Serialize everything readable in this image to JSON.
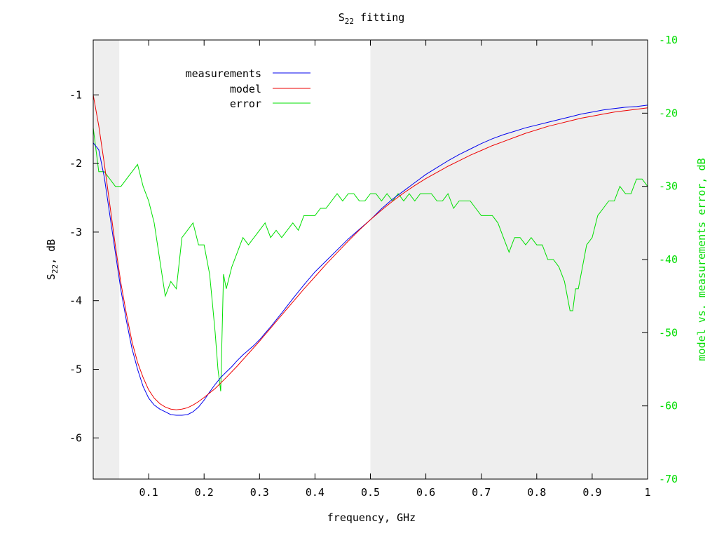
{
  "chart_data": {
    "type": "line",
    "title": {
      "base": "S",
      "sub": "22",
      "rest": " fitting"
    },
    "xlabel": "frequency, GHz",
    "ylabel": {
      "base": "S",
      "sub": "22",
      "rest": ", dB"
    },
    "y2label": "model vs. measurements error, dB",
    "xlim": [
      0.0,
      1.0
    ],
    "ylim": [
      -6.6,
      -0.2
    ],
    "y2lim": [
      -70,
      -10
    ],
    "x_ticks": [
      "0.1",
      "0.2",
      "0.3",
      "0.4",
      "0.5",
      "0.6",
      "0.7",
      "0.8",
      "0.9",
      "1"
    ],
    "y_ticks": [
      "-6",
      "-5",
      "-4",
      "-3",
      "-2",
      "-1"
    ],
    "y2_ticks": [
      "-70",
      "-60",
      "-50",
      "-40",
      "-30",
      "-20",
      "-10"
    ],
    "shaded_regions": [
      [
        0.0,
        0.047
      ],
      [
        0.5,
        1.0
      ]
    ],
    "grid": false,
    "legend_position": "top-left",
    "colors": {
      "measurements": "#0000ee",
      "model": "#ee0000",
      "error": "#00e000",
      "shade": "#eeeeee",
      "right_axis": "#00dd00"
    },
    "series": [
      {
        "name": "measurements",
        "axis": "left",
        "x": [
          0.0,
          0.01,
          0.02,
          0.03,
          0.04,
          0.05,
          0.06,
          0.07,
          0.08,
          0.09,
          0.1,
          0.11,
          0.12,
          0.13,
          0.14,
          0.15,
          0.16,
          0.17,
          0.18,
          0.19,
          0.2,
          0.21,
          0.22,
          0.23,
          0.24,
          0.25,
          0.26,
          0.27,
          0.28,
          0.29,
          0.3,
          0.32,
          0.34,
          0.36,
          0.38,
          0.4,
          0.42,
          0.44,
          0.46,
          0.48,
          0.5,
          0.52,
          0.54,
          0.56,
          0.58,
          0.6,
          0.62,
          0.64,
          0.66,
          0.68,
          0.7,
          0.72,
          0.74,
          0.76,
          0.78,
          0.8,
          0.82,
          0.84,
          0.86,
          0.88,
          0.9,
          0.92,
          0.94,
          0.96,
          0.98,
          1.0
        ],
        "y": [
          -1.7,
          -1.8,
          -2.2,
          -2.75,
          -3.3,
          -3.85,
          -4.3,
          -4.7,
          -5.0,
          -5.25,
          -5.42,
          -5.52,
          -5.58,
          -5.62,
          -5.66,
          -5.67,
          -5.67,
          -5.66,
          -5.62,
          -5.55,
          -5.45,
          -5.33,
          -5.22,
          -5.12,
          -5.04,
          -4.96,
          -4.87,
          -4.79,
          -4.72,
          -4.65,
          -4.57,
          -4.38,
          -4.18,
          -3.97,
          -3.77,
          -3.58,
          -3.42,
          -3.26,
          -3.1,
          -2.96,
          -2.82,
          -2.66,
          -2.52,
          -2.4,
          -2.28,
          -2.16,
          -2.06,
          -1.96,
          -1.87,
          -1.79,
          -1.71,
          -1.64,
          -1.58,
          -1.53,
          -1.48,
          -1.44,
          -1.4,
          -1.36,
          -1.32,
          -1.28,
          -1.25,
          -1.22,
          -1.2,
          -1.18,
          -1.17,
          -1.15
        ]
      },
      {
        "name": "model",
        "axis": "left",
        "x": [
          0.0,
          0.01,
          0.02,
          0.03,
          0.04,
          0.05,
          0.06,
          0.07,
          0.08,
          0.09,
          0.1,
          0.11,
          0.12,
          0.13,
          0.14,
          0.15,
          0.16,
          0.17,
          0.18,
          0.19,
          0.2,
          0.22,
          0.24,
          0.26,
          0.28,
          0.3,
          0.32,
          0.34,
          0.36,
          0.38,
          0.4,
          0.42,
          0.44,
          0.46,
          0.48,
          0.5,
          0.52,
          0.54,
          0.56,
          0.58,
          0.6,
          0.62,
          0.64,
          0.66,
          0.68,
          0.7,
          0.72,
          0.74,
          0.76,
          0.78,
          0.8,
          0.82,
          0.84,
          0.86,
          0.88,
          0.9,
          0.92,
          0.94,
          0.96,
          0.98,
          1.0
        ],
        "y": [
          -1.0,
          -1.45,
          -2.0,
          -2.6,
          -3.2,
          -3.75,
          -4.2,
          -4.6,
          -4.9,
          -5.12,
          -5.3,
          -5.42,
          -5.5,
          -5.55,
          -5.58,
          -5.59,
          -5.58,
          -5.56,
          -5.52,
          -5.47,
          -5.41,
          -5.28,
          -5.12,
          -4.95,
          -4.77,
          -4.59,
          -4.4,
          -4.21,
          -4.02,
          -3.83,
          -3.65,
          -3.47,
          -3.3,
          -3.13,
          -2.97,
          -2.82,
          -2.68,
          -2.55,
          -2.43,
          -2.32,
          -2.22,
          -2.13,
          -2.04,
          -1.96,
          -1.88,
          -1.81,
          -1.74,
          -1.68,
          -1.62,
          -1.56,
          -1.51,
          -1.46,
          -1.42,
          -1.38,
          -1.34,
          -1.31,
          -1.28,
          -1.25,
          -1.23,
          -1.21,
          -1.19
        ]
      },
      {
        "name": "error",
        "axis": "right",
        "x": [
          0.0,
          0.01,
          0.02,
          0.03,
          0.04,
          0.05,
          0.06,
          0.07,
          0.08,
          0.09,
          0.1,
          0.11,
          0.12,
          0.13,
          0.14,
          0.15,
          0.16,
          0.17,
          0.18,
          0.19,
          0.2,
          0.21,
          0.215,
          0.22,
          0.225,
          0.23,
          0.235,
          0.24,
          0.25,
          0.26,
          0.27,
          0.28,
          0.29,
          0.3,
          0.31,
          0.32,
          0.33,
          0.34,
          0.35,
          0.36,
          0.37,
          0.38,
          0.39,
          0.4,
          0.41,
          0.42,
          0.43,
          0.44,
          0.45,
          0.46,
          0.47,
          0.48,
          0.49,
          0.5,
          0.51,
          0.52,
          0.53,
          0.54,
          0.55,
          0.56,
          0.57,
          0.58,
          0.59,
          0.6,
          0.61,
          0.62,
          0.63,
          0.64,
          0.65,
          0.66,
          0.67,
          0.68,
          0.69,
          0.7,
          0.71,
          0.72,
          0.73,
          0.74,
          0.75,
          0.76,
          0.77,
          0.78,
          0.79,
          0.8,
          0.81,
          0.82,
          0.83,
          0.84,
          0.85,
          0.86,
          0.865,
          0.87,
          0.875,
          0.88,
          0.89,
          0.9,
          0.91,
          0.92,
          0.93,
          0.94,
          0.95,
          0.96,
          0.97,
          0.98,
          0.99,
          1.0
        ],
        "y": [
          -22,
          -28,
          -28,
          -29,
          -30,
          -30,
          -29,
          -28,
          -27,
          -30,
          -32,
          -35,
          -40,
          -45,
          -43,
          -44,
          -37,
          -36,
          -35,
          -38,
          -38,
          -42,
          -46,
          -50,
          -55,
          -58,
          -42,
          -44,
          -41,
          -39,
          -37,
          -38,
          -37,
          -36,
          -35,
          -37,
          -36,
          -37,
          -36,
          -35,
          -36,
          -34,
          -34,
          -34,
          -33,
          -33,
          -32,
          -31,
          -32,
          -31,
          -31,
          -32,
          -32,
          -31,
          -31,
          -32,
          -31,
          -32,
          -31,
          -32,
          -31,
          -32,
          -31,
          -31,
          -31,
          -32,
          -32,
          -31,
          -33,
          -32,
          -32,
          -32,
          -33,
          -34,
          -34,
          -34,
          -35,
          -37,
          -39,
          -37,
          -37,
          -38,
          -37,
          -38,
          -38,
          -40,
          -40,
          -41,
          -43,
          -47,
          -47,
          -44,
          -44,
          -42,
          -38,
          -37,
          -34,
          -33,
          -32,
          -32,
          -30,
          -31,
          -31,
          -29,
          -29,
          -30
        ]
      }
    ]
  }
}
